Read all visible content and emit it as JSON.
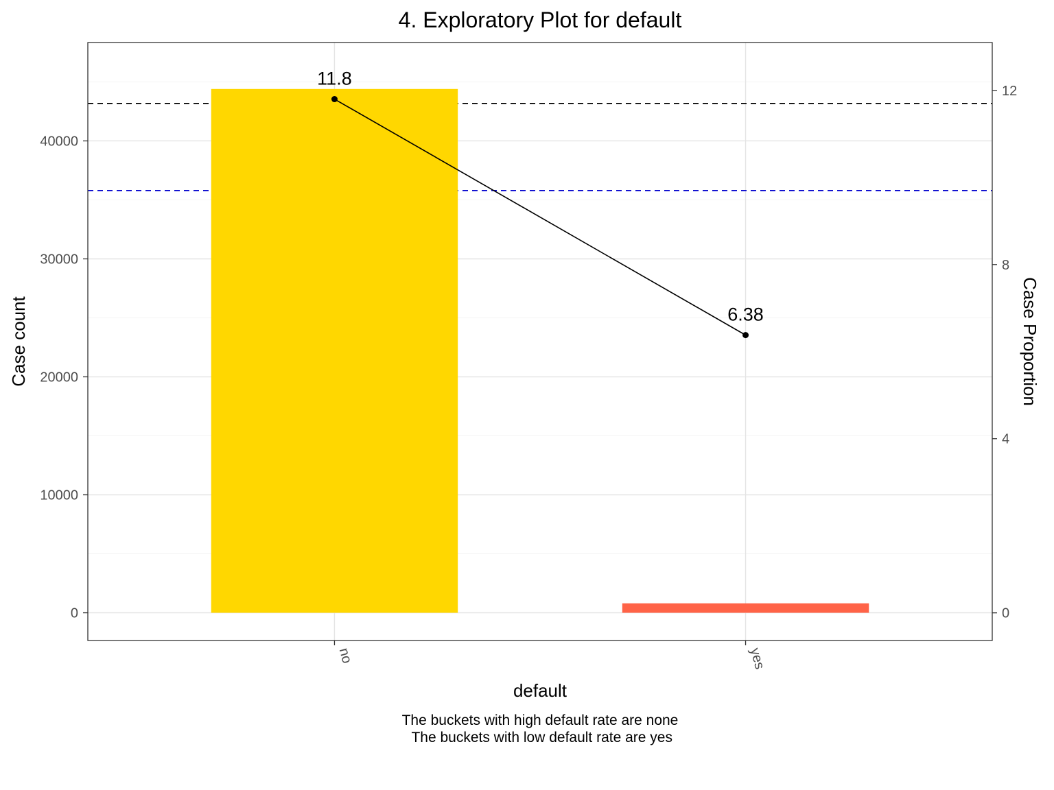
{
  "chart_data": {
    "type": "bar",
    "title": "4. Exploratory Plot for default",
    "xlabel": "default",
    "ylabel": "Case count",
    "y2label": "Case Proportion",
    "categories": [
      "no",
      "yes"
    ],
    "bars": {
      "name": "Case count",
      "values": [
        44400,
        800
      ],
      "colors": [
        "#FFD700",
        "#FF6347"
      ]
    },
    "line": {
      "name": "Case Proportion",
      "values": [
        11.8,
        6.38
      ],
      "labels": [
        "11.8",
        "6.38"
      ],
      "color": "#000000"
    },
    "reference_lines": [
      {
        "axis": "y2",
        "value": 11.7,
        "color": "#000000",
        "style": "dashed"
      },
      {
        "axis": "y2",
        "value": 9.7,
        "color": "#0000CD",
        "style": "dashed"
      }
    ],
    "ylim": [
      -2350,
      48340
    ],
    "y_ticks": [
      0,
      10000,
      20000,
      30000,
      40000
    ],
    "y2lim": [
      -0.6353,
      13.1
    ],
    "y2_ticks": [
      0,
      4,
      8,
      12
    ],
    "grid": true,
    "caption_lines": [
      "The buckets with high default rate are none",
      " The buckets with low default rate are yes"
    ]
  }
}
